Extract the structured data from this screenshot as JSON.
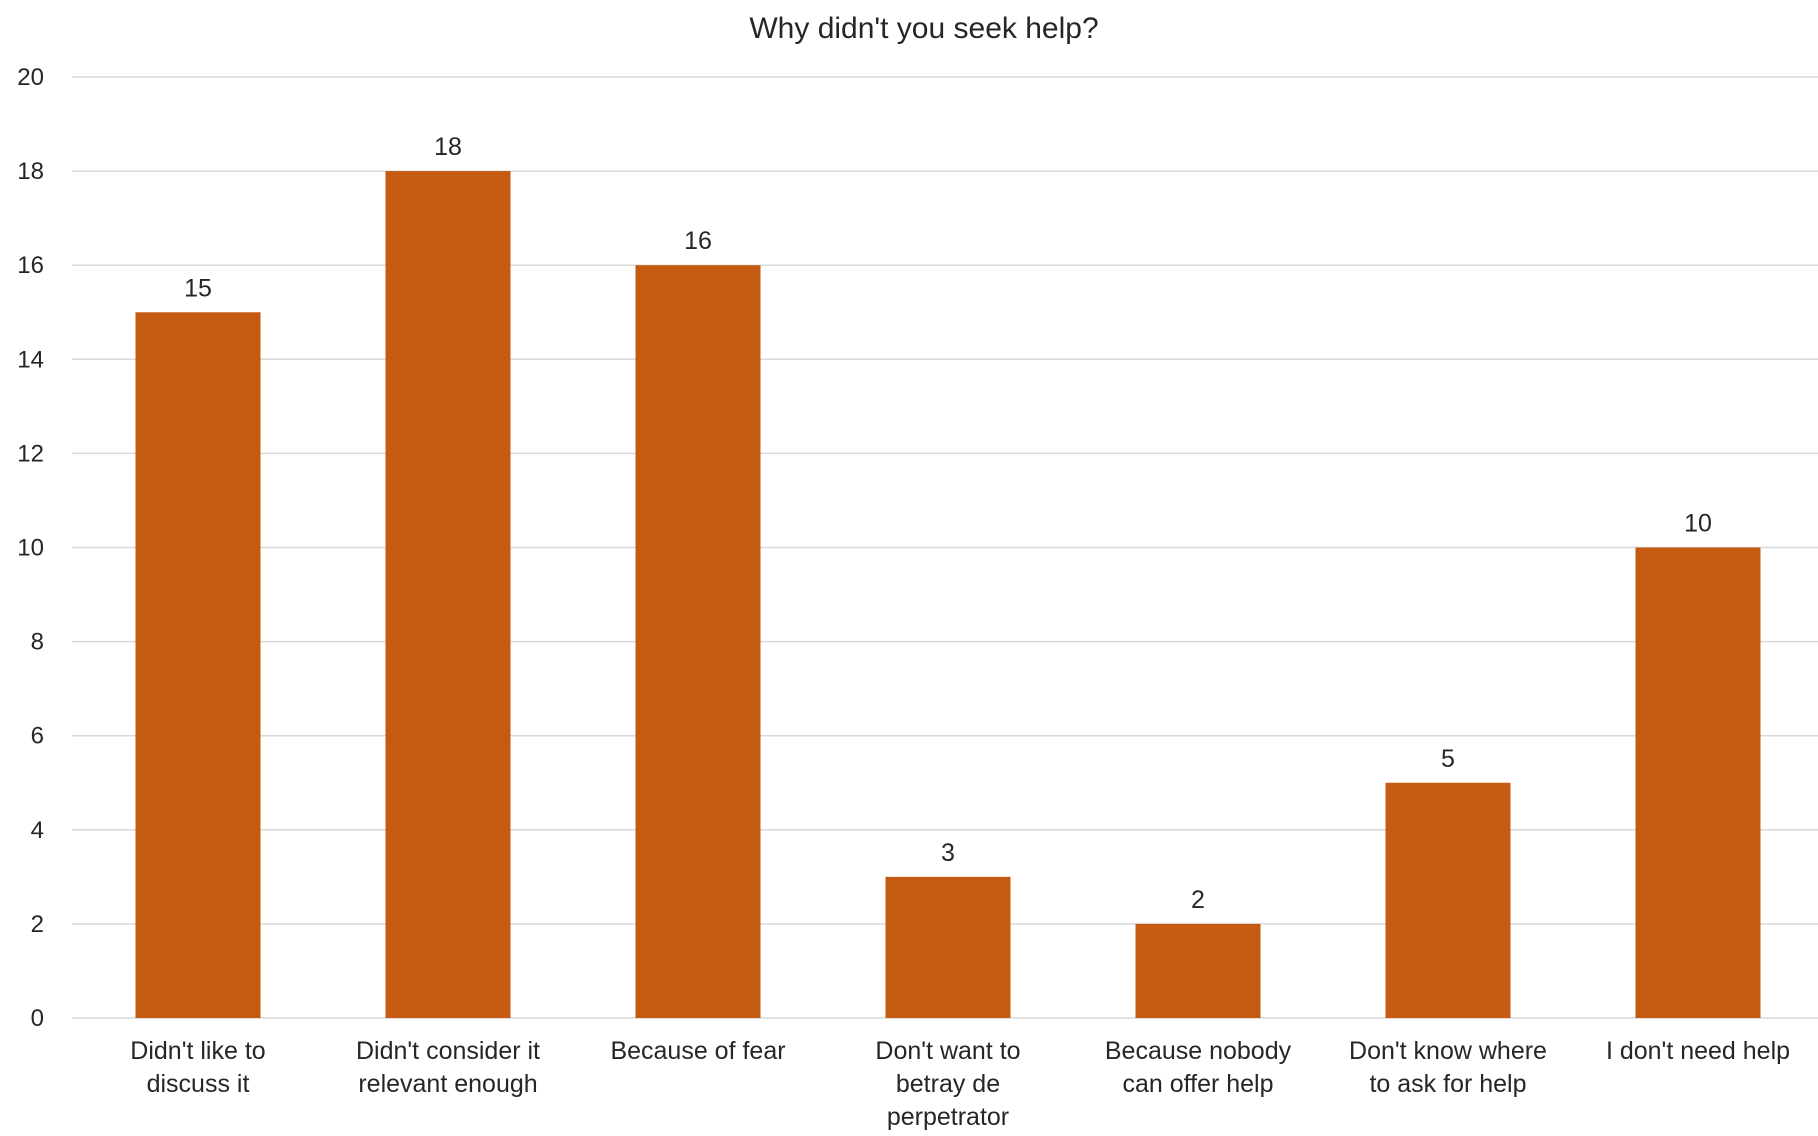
{
  "chart_data": {
    "type": "bar",
    "title": "Why didn't you seek help?",
    "xlabel": "",
    "ylabel": "",
    "ylim": [
      0,
      20
    ],
    "yticks": [
      0,
      2,
      4,
      6,
      8,
      10,
      12,
      14,
      16,
      18,
      20
    ],
    "grid": true,
    "legend": "none",
    "bar_color": "#c55a11",
    "categories": [
      [
        "Didn't like to",
        "discuss it"
      ],
      [
        "Didn't consider it",
        "relevant enough"
      ],
      [
        "Because of fear"
      ],
      [
        "Don't want to",
        "betray de",
        "perpetrator"
      ],
      [
        "Because nobody",
        "can offer help"
      ],
      [
        "Don't know where",
        "to ask for help"
      ],
      [
        "I don't need help"
      ]
    ],
    "values": [
      15,
      18,
      16,
      3,
      2,
      5,
      10
    ],
    "data_labels": [
      "15",
      "18",
      "16",
      "3",
      "2",
      "5",
      "10"
    ]
  }
}
